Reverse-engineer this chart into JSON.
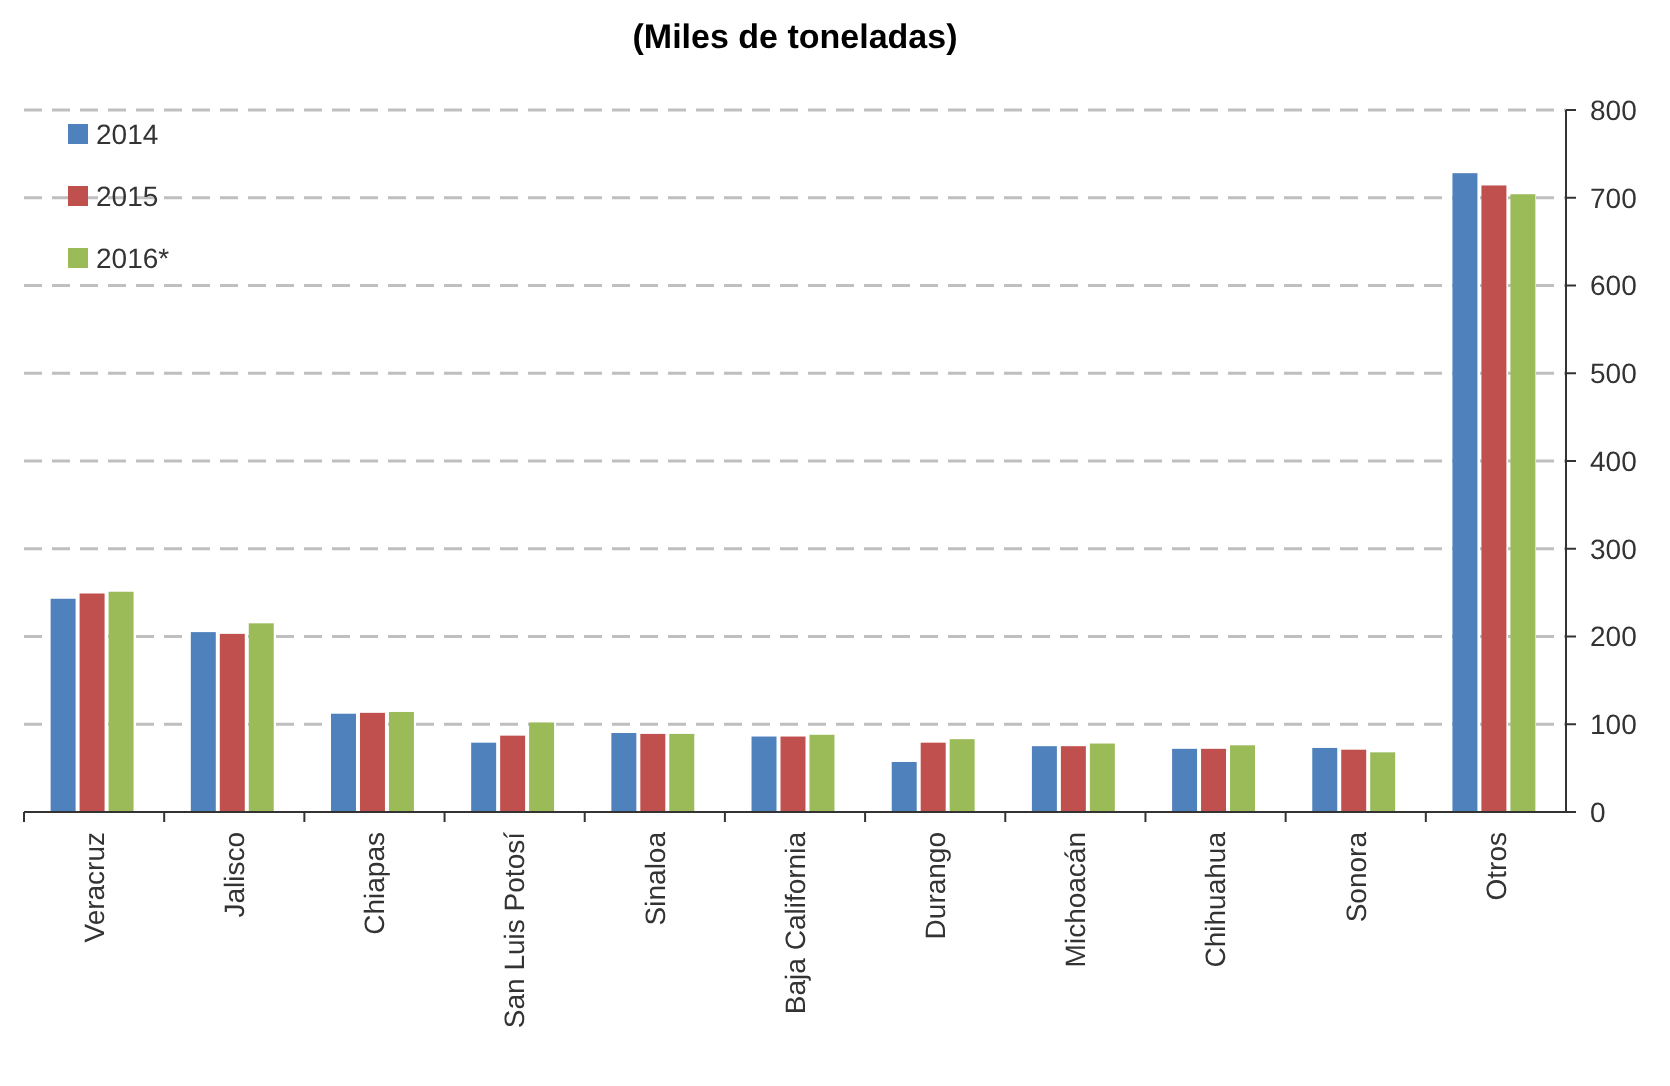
{
  "chart_data": {
    "type": "bar",
    "title": "(Miles de toneladas)",
    "categories": [
      "Veracruz",
      "Jalisco",
      "Chiapas",
      "San Luis Potosí",
      "Sinaloa",
      "Baja California",
      "Durango",
      "Michoacán",
      "Chihuahua",
      "Sonora",
      "Otros"
    ],
    "series": [
      {
        "name": "2014",
        "color": "#4f81bd",
        "values": [
          243,
          205,
          112,
          79,
          90,
          86,
          57,
          75,
          72,
          73,
          728
        ]
      },
      {
        "name": "2015",
        "color": "#c0504d",
        "values": [
          249,
          203,
          113,
          87,
          89,
          86,
          79,
          75,
          72,
          71,
          714
        ]
      },
      {
        "name": "2016*",
        "color": "#9bbb59",
        "values": [
          251,
          215,
          114,
          102,
          89,
          88,
          83,
          78,
          76,
          68,
          704
        ]
      }
    ],
    "ylim": [
      0,
      800
    ],
    "yticks": [
      0,
      100,
      200,
      300,
      400,
      500,
      600,
      700,
      800
    ],
    "grid": "y",
    "line_style": "dashed",
    "legend": "top left"
  }
}
